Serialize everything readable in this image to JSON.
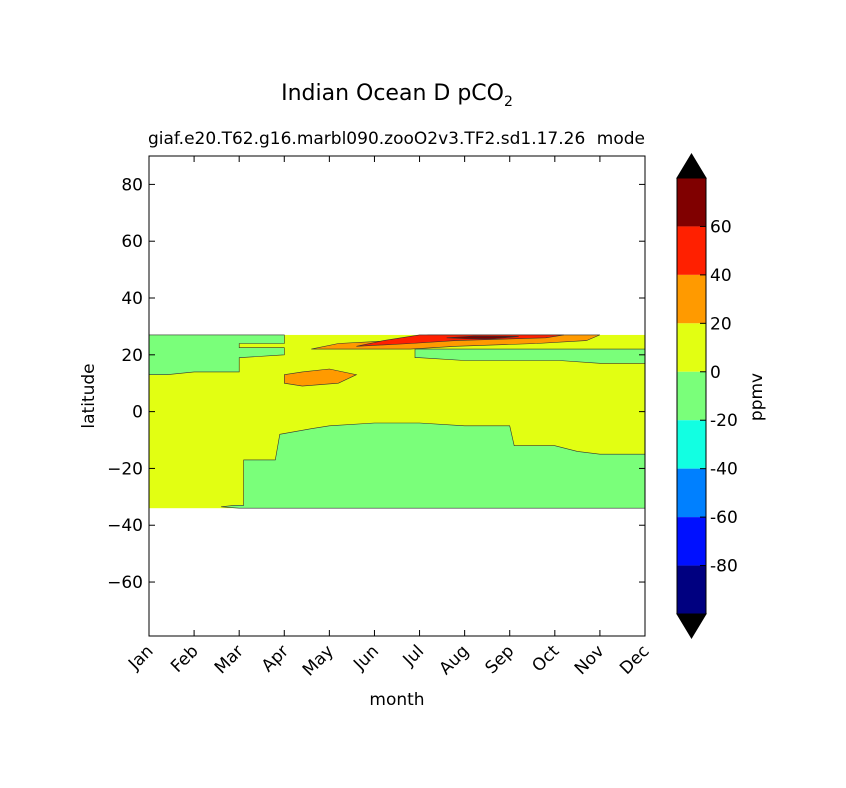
{
  "chart_data": {
    "type": "contourf",
    "title_main": "Indian Ocean D pCO",
    "title_sub": "2",
    "subtitle_left": "giaf.e20.T62.g16.marbl090.zooO2v3.TF2.sd1.17.26",
    "subtitle_right": "mode",
    "xlabel": "month",
    "ylabel": "latitude",
    "x_categories": [
      "Jan",
      "Feb",
      "Mar",
      "Apr",
      "May",
      "Jun",
      "Jul",
      "Aug",
      "Sep",
      "Oct",
      "Nov",
      "Dec"
    ],
    "xlim": [
      0,
      11
    ],
    "ylim": [
      -79,
      90
    ],
    "y_ticks": [
      80,
      60,
      40,
      20,
      0,
      -20,
      -40,
      -60
    ],
    "y_tick_labels": [
      "80",
      "60",
      "40",
      "20",
      "0",
      "−20",
      "−40",
      "−60"
    ],
    "data_extent_lat": [
      -34,
      27
    ],
    "region_label_description": "Indian Ocean basin",
    "contour_regions": [
      {
        "level": "20 to 40",
        "color": "#ff9a00",
        "polygon": [
          [
            3.0,
            13
          ],
          [
            3.4,
            14
          ],
          [
            4.0,
            15
          ],
          [
            4.6,
            13
          ],
          [
            4.2,
            10
          ],
          [
            3.4,
            9
          ],
          [
            3.0,
            10
          ]
        ]
      },
      {
        "level": "20 to 40",
        "color": "#ff9a00",
        "polygon": [
          [
            3.6,
            22
          ],
          [
            4.2,
            24
          ],
          [
            5.4,
            25
          ],
          [
            6.2,
            27
          ],
          [
            10.0,
            27
          ],
          [
            9.7,
            25
          ],
          [
            8.6,
            24
          ],
          [
            6.8,
            23
          ],
          [
            5.8,
            22
          ],
          [
            4.6,
            22
          ]
        ]
      },
      {
        "level": "40 to 60",
        "color": "#ff2000",
        "polygon": [
          [
            4.6,
            23
          ],
          [
            5.8,
            24
          ],
          [
            6.8,
            25
          ],
          [
            8.8,
            26
          ],
          [
            9.2,
            27
          ],
          [
            6.0,
            27
          ],
          [
            5.2,
            25
          ]
        ]
      },
      {
        "level": "60 to 80",
        "color": "#800000",
        "polygon": [
          [
            6.6,
            26
          ],
          [
            7.2,
            26.6
          ],
          [
            8.2,
            26.5
          ],
          [
            7.6,
            25.6
          ],
          [
            7.0,
            25.7
          ]
        ]
      },
      {
        "level": "-20 to 0",
        "color": "#7aff7a",
        "polygon": [
          [
            0,
            27
          ],
          [
            3.0,
            27
          ],
          [
            3.0,
            24
          ],
          [
            2.0,
            24
          ],
          [
            2.0,
            22.5
          ],
          [
            3.0,
            22.5
          ],
          [
            3.0,
            20
          ],
          [
            2.0,
            19
          ],
          [
            2.0,
            14
          ],
          [
            1.0,
            14
          ],
          [
            0.4,
            13
          ],
          [
            0,
            13
          ]
        ]
      },
      {
        "level": "-20 to 0",
        "color": "#7aff7a",
        "polygon": [
          [
            5.9,
            22
          ],
          [
            11,
            22
          ],
          [
            11,
            17
          ],
          [
            10,
            17
          ],
          [
            9.1,
            18
          ],
          [
            7.0,
            18
          ],
          [
            6.0,
            19
          ],
          [
            5.9,
            19
          ]
        ]
      },
      {
        "level": "-20 to 0",
        "color": "#7aff7a",
        "polygon": [
          [
            2.0,
            -34
          ],
          [
            11,
            -34
          ],
          [
            11,
            -15
          ],
          [
            10,
            -15
          ],
          [
            9.5,
            -14
          ],
          [
            9.0,
            -12
          ],
          [
            8.1,
            -12
          ],
          [
            8.0,
            -5
          ],
          [
            7.0,
            -5
          ],
          [
            6.0,
            -4
          ],
          [
            5.0,
            -4
          ],
          [
            4.0,
            -5
          ],
          [
            3.6,
            -6
          ],
          [
            2.9,
            -8
          ],
          [
            2.8,
            -17
          ],
          [
            2.1,
            -17
          ],
          [
            2.1,
            -33
          ],
          [
            1.9,
            -33
          ],
          [
            1.6,
            -33.5
          ]
        ]
      }
    ],
    "colorbar": {
      "label": "ppmv",
      "tick_labels": [
        "60",
        "40",
        "20",
        "0",
        "-20",
        "-40",
        "-60",
        "-80"
      ],
      "tick_values": [
        60,
        40,
        20,
        0,
        -20,
        -40,
        -60,
        -80
      ],
      "bins": [
        {
          "range": [
            60,
            80
          ],
          "color": "#800000"
        },
        {
          "range": [
            40,
            60
          ],
          "color": "#ff2000"
        },
        {
          "range": [
            20,
            40
          ],
          "color": "#ff9a00"
        },
        {
          "range": [
            0,
            20
          ],
          "color": "#e2ff12"
        },
        {
          "range": [
            -20,
            0
          ],
          "color": "#7aff7a"
        },
        {
          "range": [
            -40,
            -20
          ],
          "color": "#12ffe2"
        },
        {
          "range": [
            -60,
            -40
          ],
          "color": "#0080ff"
        },
        {
          "range": [
            -80,
            -60
          ],
          "color": "#0010ff"
        },
        {
          "range": [
            -100,
            -80
          ],
          "color": "#000080"
        }
      ],
      "extend_color": "#000000",
      "background_fill": "#e2ff12"
    }
  }
}
